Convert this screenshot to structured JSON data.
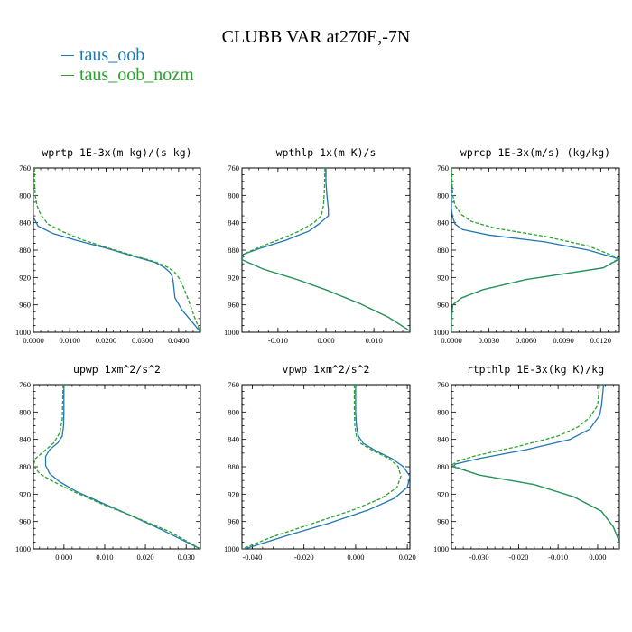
{
  "title": "CLUBB VAR at270E,-7N",
  "legend": [
    {
      "label": "taus_oob",
      "color": "#1f77b4"
    },
    {
      "label": "taus_oob_nozm",
      "color": "#2ca02c"
    }
  ],
  "chart_data": [
    {
      "type": "line",
      "title": "wprtp   1E-3x(m kg)/(s kg)",
      "xlim": [
        0.0,
        0.046
      ],
      "ylim": [
        760,
        1000
      ],
      "y_inverted": true,
      "xticks": [
        {
          "v": 0.0,
          "label": "0.0000"
        },
        {
          "v": 0.01,
          "label": "0.0100"
        },
        {
          "v": 0.02,
          "label": "0.0200"
        },
        {
          "v": 0.03,
          "label": "0.0300"
        },
        {
          "v": 0.04,
          "label": "0.0400"
        }
      ],
      "yticks": [
        760,
        800,
        840,
        880,
        920,
        960,
        1000
      ],
      "series": [
        {
          "name": "taus_oob",
          "color": "#1f77b4",
          "dashed": false,
          "x": [
            0.0,
            0.0,
            0.0,
            0.0,
            0.0,
            0.0004,
            0.0013,
            0.0055,
            0.012,
            0.02,
            0.027,
            0.0335,
            0.036,
            0.0375,
            0.0382,
            0.0385,
            0.039,
            0.041,
            0.0445,
            0.046
          ],
          "y": [
            760,
            780,
            800,
            820,
            832,
            836,
            845,
            856,
            866,
            877,
            888,
            898,
            905,
            912,
            918,
            926,
            950,
            968,
            990,
            1000
          ]
        },
        {
          "name": "taus_oob_nozm",
          "color": "#2ca02c",
          "dashed": true,
          "x": [
            0.0003,
            0.0003,
            0.0005,
            0.001,
            0.002,
            0.004,
            0.008,
            0.013,
            0.02,
            0.027,
            0.0335,
            0.037,
            0.039,
            0.04,
            0.041,
            0.0425,
            0.0445,
            0.046
          ],
          "y": [
            760,
            780,
            800,
            815,
            828,
            842,
            853,
            864,
            876,
            887,
            897,
            905,
            913,
            920,
            930,
            950,
            980,
            1000
          ]
        }
      ]
    },
    {
      "type": "line",
      "title": "wpthlp   1x(m K)/s",
      "xlim": [
        -0.0175,
        0.0175
      ],
      "ylim": [
        760,
        1000
      ],
      "y_inverted": true,
      "xticks": [
        {
          "v": -0.01,
          "label": "-0.010"
        },
        {
          "v": 0.0,
          "label": "0.000"
        },
        {
          "v": 0.01,
          "label": "0.010"
        }
      ],
      "yticks": [
        760,
        800,
        840,
        880,
        920,
        960,
        1000
      ],
      "series": [
        {
          "name": "taus_oob",
          "color": "#1f77b4",
          "dashed": false,
          "x": [
            0.0,
            0.0,
            0.0002,
            0.0005,
            0.0005,
            -0.0015,
            -0.0035,
            -0.0085,
            -0.014,
            -0.0172,
            -0.0175,
            -0.013,
            -0.006,
            0.0,
            0.007,
            0.013,
            0.0175
          ],
          "y": [
            760,
            780,
            800,
            820,
            830,
            842,
            852,
            866,
            878,
            886,
            894,
            908,
            923,
            938,
            958,
            978,
            998
          ]
        },
        {
          "name": "taus_oob_nozm",
          "color": "#2ca02c",
          "dashed": true,
          "x": [
            -0.0002,
            -0.0003,
            -0.0005,
            -0.001,
            -0.0025,
            -0.0055,
            -0.0095,
            -0.014,
            -0.0172,
            -0.0175,
            -0.013,
            -0.006,
            0.0,
            0.007,
            0.013,
            0.0175
          ],
          "y": [
            760,
            790,
            815,
            830,
            840,
            852,
            864,
            876,
            886,
            894,
            908,
            923,
            938,
            958,
            978,
            998
          ]
        }
      ]
    },
    {
      "type": "line",
      "title": "wprcp   1E-3x(m/s) (kg/kg)",
      "xlim": [
        0.0,
        0.0135
      ],
      "ylim": [
        760,
        1000
      ],
      "y_inverted": true,
      "xticks": [
        {
          "v": 0.0,
          "label": "0.0000"
        },
        {
          "v": 0.003,
          "label": "0.0030"
        },
        {
          "v": 0.006,
          "label": "0.0060"
        },
        {
          "v": 0.009,
          "label": "0.0090"
        },
        {
          "v": 0.012,
          "label": "0.0120"
        }
      ],
      "yticks": [
        760,
        800,
        840,
        880,
        920,
        960,
        1000
      ],
      "series": [
        {
          "name": "taus_oob",
          "color": "#1f77b4",
          "dashed": false,
          "x": [
            0.0,
            0.0,
            0.0,
            0.0001,
            0.0003,
            0.0009,
            0.003,
            0.0075,
            0.011,
            0.0135,
            0.0122,
            0.006,
            0.0025,
            0.0008,
            0.0001,
            0.0,
            0.0
          ],
          "y": [
            760,
            800,
            820,
            832,
            842,
            850,
            858,
            868,
            880,
            893,
            906,
            923,
            938,
            950,
            960,
            980,
            1000
          ]
        },
        {
          "name": "taus_oob_nozm",
          "color": "#2ca02c",
          "dashed": true,
          "x": [
            0.0,
            0.0001,
            0.0003,
            0.0008,
            0.0016,
            0.0035,
            0.0075,
            0.011,
            0.0135,
            0.0122,
            0.006,
            0.0025,
            0.0008,
            0.0001,
            0.0,
            0.0
          ],
          "y": [
            760,
            800,
            815,
            828,
            838,
            848,
            860,
            874,
            892,
            906,
            923,
            938,
            950,
            960,
            980,
            1000
          ]
        }
      ]
    },
    {
      "type": "line",
      "title": "upwp   1xm^2/s^2",
      "xlim": [
        -0.0075,
        0.0335
      ],
      "ylim": [
        760,
        1000
      ],
      "y_inverted": true,
      "xticks": [
        {
          "v": 0.0,
          "label": "0.000"
        },
        {
          "v": 0.01,
          "label": "0.010"
        },
        {
          "v": 0.02,
          "label": "0.020"
        },
        {
          "v": 0.03,
          "label": "0.030"
        }
      ],
      "yticks": [
        760,
        800,
        840,
        880,
        920,
        960,
        1000
      ],
      "series": [
        {
          "name": "taus_oob",
          "color": "#1f77b4",
          "dashed": false,
          "x": [
            0.0,
            0.0,
            -0.0001,
            -0.0004,
            -0.0015,
            -0.0035,
            -0.0045,
            -0.0045,
            -0.0035,
            -0.001,
            0.003,
            0.009,
            0.016,
            0.024,
            0.0335
          ],
          "y": [
            760,
            800,
            820,
            835,
            845,
            855,
            865,
            878,
            890,
            902,
            916,
            932,
            950,
            972,
            1000
          ]
        },
        {
          "name": "taus_oob_nozm",
          "color": "#2ca02c",
          "dashed": true,
          "x": [
            -0.0002,
            -0.0004,
            -0.001,
            -0.0025,
            -0.005,
            -0.007,
            -0.0075,
            -0.006,
            -0.0025,
            0.003,
            0.01,
            0.018,
            0.026,
            0.0335
          ],
          "y": [
            760,
            810,
            830,
            845,
            858,
            868,
            878,
            890,
            902,
            918,
            936,
            955,
            975,
            1000
          ]
        }
      ]
    },
    {
      "type": "line",
      "title": "vpwp   1xm^2/s^2",
      "xlim": [
        -0.044,
        0.021
      ],
      "ylim": [
        760,
        1000
      ],
      "y_inverted": true,
      "xticks": [
        {
          "v": -0.04,
          "label": "-0.040"
        },
        {
          "v": -0.02,
          "label": "-0.020"
        },
        {
          "v": 0.0,
          "label": "0.000"
        },
        {
          "v": 0.02,
          "label": "0.020"
        }
      ],
      "yticks": [
        760,
        800,
        840,
        880,
        920,
        960,
        1000
      ],
      "series": [
        {
          "name": "taus_oob",
          "color": "#1f77b4",
          "dashed": false,
          "x": [
            0.0,
            0.0,
            0.0003,
            0.001,
            0.003,
            0.008,
            0.014,
            0.0185,
            0.021,
            0.02,
            0.015,
            0.005,
            -0.01,
            -0.026,
            -0.043
          ],
          "y": [
            760,
            800,
            820,
            835,
            846,
            857,
            868,
            880,
            894,
            910,
            926,
            943,
            962,
            980,
            1000
          ]
        },
        {
          "name": "taus_oob_nozm",
          "color": "#2ca02c",
          "dashed": true,
          "x": [
            -0.0005,
            -0.0005,
            -0.0003,
            0.0003,
            0.002,
            0.007,
            0.013,
            0.0165,
            0.0175,
            0.016,
            0.01,
            -0.001,
            -0.016,
            -0.032,
            -0.044
          ],
          "y": [
            760,
            800,
            820,
            835,
            846,
            857,
            868,
            880,
            894,
            910,
            926,
            943,
            962,
            982,
            1000
          ]
        }
      ]
    },
    {
      "type": "line",
      "title": "rtpthlp   1E-3x(kg K)/kg",
      "xlim": [
        -0.037,
        0.0055
      ],
      "ylim": [
        760,
        1000
      ],
      "y_inverted": true,
      "xticks": [
        {
          "v": -0.03,
          "label": "-0.030"
        },
        {
          "v": -0.02,
          "label": "-0.020"
        },
        {
          "v": -0.01,
          "label": "-0.010"
        },
        {
          "v": 0.0,
          "label": "0.000"
        }
      ],
      "yticks": [
        760,
        800,
        840,
        880,
        920,
        960,
        1000
      ],
      "series": [
        {
          "name": "taus_oob",
          "color": "#1f77b4",
          "dashed": false,
          "x": [
            0.0015,
            0.001,
            0.0005,
            -0.002,
            -0.007,
            -0.018,
            -0.03,
            -0.036,
            -0.0365,
            -0.03,
            -0.016,
            -0.006,
            0.001,
            0.004,
            0.0055,
            0.0055
          ],
          "y": [
            760,
            790,
            805,
            825,
            840,
            855,
            868,
            876,
            880,
            892,
            906,
            924,
            945,
            968,
            990,
            1000
          ]
        },
        {
          "name": "taus_oob_nozm",
          "color": "#2ca02c",
          "dashed": true,
          "x": [
            0.0005,
            0.0,
            -0.002,
            -0.005,
            -0.01,
            -0.02,
            -0.031,
            -0.0355,
            -0.037,
            -0.03,
            -0.016,
            -0.006,
            0.001,
            0.004,
            0.0055,
            0.0055
          ],
          "y": [
            760,
            790,
            808,
            822,
            835,
            850,
            864,
            872,
            878,
            892,
            906,
            924,
            945,
            968,
            990,
            1000
          ]
        }
      ]
    }
  ]
}
